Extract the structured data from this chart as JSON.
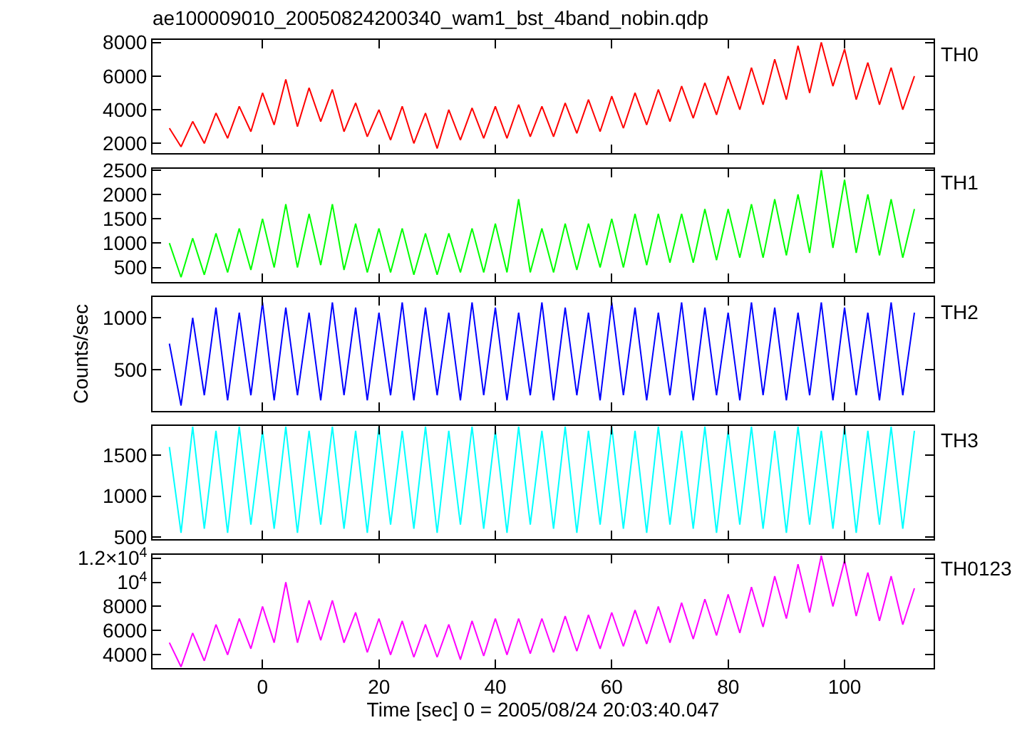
{
  "chart_data": [
    {
      "type": "line",
      "title": "ae100009010_20050824200340_wam1_bst_4band_nobin.qdp",
      "tick_labels": "y",
      "xlim": [
        -18.9,
        115.3
      ],
      "xticks": [
        0,
        20,
        40,
        60,
        80,
        100
      ],
      "ylim": [
        1400,
        8150
      ],
      "yticks": [
        2000,
        4000,
        6000,
        8000
      ],
      "x": [
        -16,
        -14,
        -12,
        -10,
        -8,
        -6,
        -4,
        -2,
        0,
        2,
        4,
        6,
        8,
        10,
        12,
        14,
        16,
        18,
        20,
        22,
        24,
        26,
        28,
        30,
        32,
        34,
        36,
        38,
        40,
        42,
        44,
        46,
        48,
        50,
        52,
        54,
        56,
        58,
        60,
        62,
        64,
        66,
        68,
        70,
        72,
        74,
        76,
        78,
        80,
        82,
        84,
        86,
        88,
        90,
        92,
        94,
        96,
        98,
        100,
        102,
        104,
        106,
        108,
        110,
        112
      ],
      "series": [
        {
          "name": "TH0",
          "color": "#ff0000",
          "values": [
            2900,
            1800,
            3300,
            2000,
            3800,
            2300,
            4200,
            2700,
            5000,
            3100,
            5800,
            3000,
            5300,
            3300,
            5200,
            2700,
            4400,
            2400,
            4000,
            2200,
            4200,
            2000,
            3800,
            1700,
            4000,
            2200,
            4100,
            2300,
            4200,
            2300,
            4300,
            2400,
            4200,
            2400,
            4400,
            2600,
            4600,
            2700,
            4800,
            2900,
            5000,
            3100,
            5200,
            3300,
            5400,
            3500,
            5600,
            3700,
            6000,
            4000,
            6500,
            4300,
            7000,
            4600,
            7800,
            5000,
            8000,
            5400,
            7600,
            4600,
            6800,
            4300,
            6500,
            4000,
            6000
          ]
        }
      ]
    },
    {
      "type": "line",
      "tick_labels": "y",
      "xlim": [
        -18.9,
        115.3
      ],
      "xticks": [
        0,
        20,
        40,
        60,
        80,
        100
      ],
      "ylim": [
        200,
        2530
      ],
      "yticks": [
        500,
        1000,
        1500,
        2000,
        2500
      ],
      "x": [
        -16,
        -14,
        -12,
        -10,
        -8,
        -6,
        -4,
        -2,
        0,
        2,
        4,
        6,
        8,
        10,
        12,
        14,
        16,
        18,
        20,
        22,
        24,
        26,
        28,
        30,
        32,
        34,
        36,
        38,
        40,
        42,
        44,
        46,
        48,
        50,
        52,
        54,
        56,
        58,
        60,
        62,
        64,
        66,
        68,
        70,
        72,
        74,
        76,
        78,
        80,
        82,
        84,
        86,
        88,
        90,
        92,
        94,
        96,
        98,
        100,
        102,
        104,
        106,
        108,
        110,
        112
      ],
      "series": [
        {
          "name": "TH1",
          "color": "#00ff00",
          "values": [
            1000,
            300,
            1100,
            350,
            1200,
            400,
            1300,
            450,
            1500,
            500,
            1800,
            500,
            1600,
            550,
            1800,
            450,
            1400,
            400,
            1300,
            400,
            1300,
            350,
            1200,
            350,
            1200,
            400,
            1300,
            400,
            1400,
            400,
            1900,
            400,
            1300,
            400,
            1400,
            450,
            1400,
            500,
            1500,
            500,
            1600,
            550,
            1600,
            600,
            1600,
            600,
            1700,
            650,
            1700,
            700,
            1800,
            700,
            1900,
            750,
            2000,
            800,
            2500,
            900,
            2300,
            800,
            2000,
            750,
            1900,
            700,
            1700
          ]
        }
      ]
    },
    {
      "type": "line",
      "ylabel": "Counts/sec",
      "tick_labels": "y",
      "xlim": [
        -18.9,
        115.3
      ],
      "xticks": [
        0,
        20,
        40,
        60,
        80,
        100
      ],
      "ylim": [
        100,
        1200
      ],
      "yticks": [
        500,
        1000
      ],
      "x": [
        -16,
        -14,
        -12,
        -10,
        -8,
        -6,
        -4,
        -2,
        0,
        2,
        4,
        6,
        8,
        10,
        12,
        14,
        16,
        18,
        20,
        22,
        24,
        26,
        28,
        30,
        32,
        34,
        36,
        38,
        40,
        42,
        44,
        46,
        48,
        50,
        52,
        54,
        56,
        58,
        60,
        62,
        64,
        66,
        68,
        70,
        72,
        74,
        76,
        78,
        80,
        82,
        84,
        86,
        88,
        90,
        92,
        94,
        96,
        98,
        100,
        102,
        104,
        106,
        108,
        110,
        112
      ],
      "series": [
        {
          "name": "TH2",
          "color": "#0000ff",
          "values": [
            750,
            150,
            1000,
            250,
            1100,
            200,
            1050,
            250,
            1150,
            200,
            1100,
            250,
            1050,
            200,
            1150,
            250,
            1100,
            200,
            1050,
            250,
            1150,
            200,
            1100,
            250,
            1050,
            200,
            1150,
            250,
            1100,
            200,
            1050,
            250,
            1150,
            200,
            1100,
            250,
            1050,
            200,
            1150,
            250,
            1100,
            200,
            1050,
            250,
            1150,
            200,
            1100,
            250,
            1050,
            200,
            1150,
            250,
            1100,
            200,
            1050,
            250,
            1150,
            200,
            1100,
            250,
            1050,
            200,
            1150,
            250,
            1050
          ]
        }
      ]
    },
    {
      "type": "line",
      "tick_labels": "y",
      "xlim": [
        -18.9,
        115.3
      ],
      "xticks": [
        0,
        20,
        40,
        60,
        80,
        100
      ],
      "ylim": [
        470,
        1860
      ],
      "yticks": [
        500,
        1000,
        1500
      ],
      "x": [
        -16,
        -14,
        -12,
        -10,
        -8,
        -6,
        -4,
        -2,
        0,
        2,
        4,
        6,
        8,
        10,
        12,
        14,
        16,
        18,
        20,
        22,
        24,
        26,
        28,
        30,
        32,
        34,
        36,
        38,
        40,
        42,
        44,
        46,
        48,
        50,
        52,
        54,
        56,
        58,
        60,
        62,
        64,
        66,
        68,
        70,
        72,
        74,
        76,
        78,
        80,
        82,
        84,
        86,
        88,
        90,
        92,
        94,
        96,
        98,
        100,
        102,
        104,
        106,
        108,
        110,
        112
      ],
      "series": [
        {
          "name": "TH3",
          "color": "#00ffff",
          "values": [
            1600,
            550,
            1850,
            600,
            1800,
            550,
            1850,
            650,
            1800,
            600,
            1850,
            550,
            1800,
            650,
            1850,
            600,
            1800,
            550,
            1850,
            650,
            1800,
            600,
            1850,
            550,
            1800,
            650,
            1850,
            600,
            1800,
            550,
            1850,
            650,
            1800,
            600,
            1850,
            550,
            1800,
            650,
            1850,
            600,
            1800,
            550,
            1850,
            650,
            1800,
            600,
            1850,
            550,
            1800,
            650,
            1850,
            600,
            1800,
            550,
            1850,
            650,
            1800,
            600,
            1850,
            550,
            1800,
            650,
            1850,
            600,
            1800
          ]
        }
      ]
    },
    {
      "type": "line",
      "xlabel": "Time [sec] 0 = 2005/08/24 20:03:40.047",
      "xlim": [
        -18.9,
        115.3
      ],
      "xticks": [
        0,
        20,
        40,
        60,
        80,
        100
      ],
      "ylim": [
        2900,
        12300
      ],
      "yticks": [
        4000,
        6000,
        8000,
        {
          "value": 10000,
          "label": "10$^{4}$"
        },
        {
          "value": 12000,
          "label": "1.2×10$^{4}$"
        }
      ],
      "x": [
        -16,
        -14,
        -12,
        -10,
        -8,
        -6,
        -4,
        -2,
        0,
        2,
        4,
        6,
        8,
        10,
        12,
        14,
        16,
        18,
        20,
        22,
        24,
        26,
        28,
        30,
        32,
        34,
        36,
        38,
        40,
        42,
        44,
        46,
        48,
        50,
        52,
        54,
        56,
        58,
        60,
        62,
        64,
        66,
        68,
        70,
        72,
        74,
        76,
        78,
        80,
        82,
        84,
        86,
        88,
        90,
        92,
        94,
        96,
        98,
        100,
        102,
        104,
        106,
        108,
        110,
        112
      ],
      "series": [
        {
          "name": "TH0123",
          "color": "#ff00ff",
          "values": [
            5000,
            3000,
            5800,
            3500,
            6500,
            4000,
            7000,
            4500,
            8000,
            5000,
            10000,
            5000,
            8500,
            5200,
            8500,
            5000,
            7500,
            4200,
            7000,
            4000,
            6800,
            3800,
            6500,
            3800,
            6500,
            3600,
            6800,
            3900,
            7000,
            4000,
            7000,
            4100,
            7000,
            4200,
            7200,
            4300,
            7300,
            4500,
            7500,
            4700,
            7700,
            4900,
            8000,
            5000,
            8300,
            5300,
            8600,
            5600,
            9000,
            5800,
            9600,
            6300,
            10500,
            7000,
            11500,
            7500,
            12200,
            8000,
            11800,
            7200,
            10800,
            6800,
            10500,
            6500,
            9500
          ]
        }
      ]
    }
  ]
}
